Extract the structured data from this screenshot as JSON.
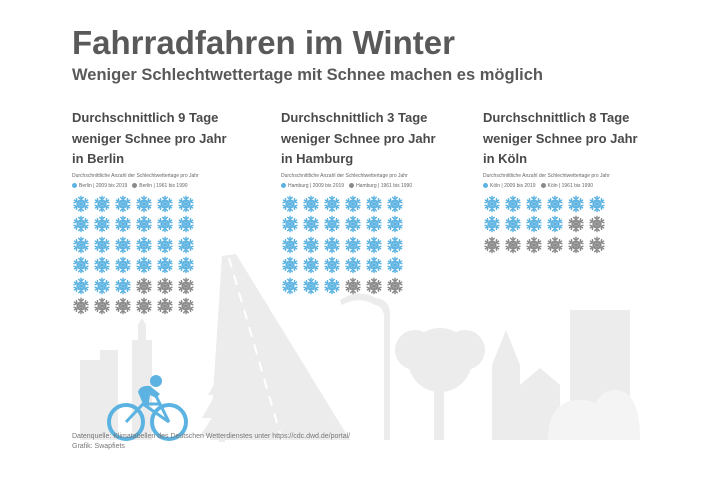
{
  "title": "Fahrradfahren im Winter",
  "subtitle": "Weniger Schlechtwettertage mit Schnee machen es möglich",
  "colors": {
    "recent": "#5cb3e1",
    "old": "#8a8a8a",
    "scenery": "#ececec",
    "cyclist": "#5cb3e1"
  },
  "icon": "snowflake-icon",
  "chart_data": [
    {
      "type": "pictogram",
      "city": "Berlin",
      "heading": [
        "Durchschnittlich 9 Tage",
        "weniger Schnee pro Jahr",
        "in Berlin"
      ],
      "note": "Durchschnittliche Anzahl der Schlechtwettertage pro Jahr",
      "legend": [
        "Berlin | 2009 bis 2019",
        "Berlin | 1961 bis 1990"
      ],
      "recent_days": 27,
      "old_days": 36,
      "columns": 6
    },
    {
      "type": "pictogram",
      "city": "Hamburg",
      "heading": [
        "Durchschnittlich 3 Tage",
        "weniger Schnee pro Jahr",
        "in Hamburg"
      ],
      "note": "Durchschnittliche Anzahl der Schlechtwettertage pro Jahr",
      "legend": [
        "Hamburg | 2009 bis 2019",
        "Hamburg | 1961 bis 1990"
      ],
      "recent_days": 27,
      "old_days": 30,
      "columns": 6
    },
    {
      "type": "pictogram",
      "city": "Köln",
      "heading": [
        "Durchschnittlich 8 Tage",
        "weniger Schnee pro Jahr",
        "in Köln"
      ],
      "note": "Durchschnittliche Anzahl der Schlechtwettertage pro Jahr",
      "legend": [
        "Köln | 2009 bis 2019",
        "Köln | 1961 bis 1990"
      ],
      "recent_days": 10,
      "old_days": 18,
      "columns": 6
    }
  ],
  "footer": {
    "source": "Datenquelle: Klimatabellen des Deutschen Wetterdienstes unter https://cdc.dwd.de/portal/",
    "credit": "Grafik: Swapfiets"
  }
}
